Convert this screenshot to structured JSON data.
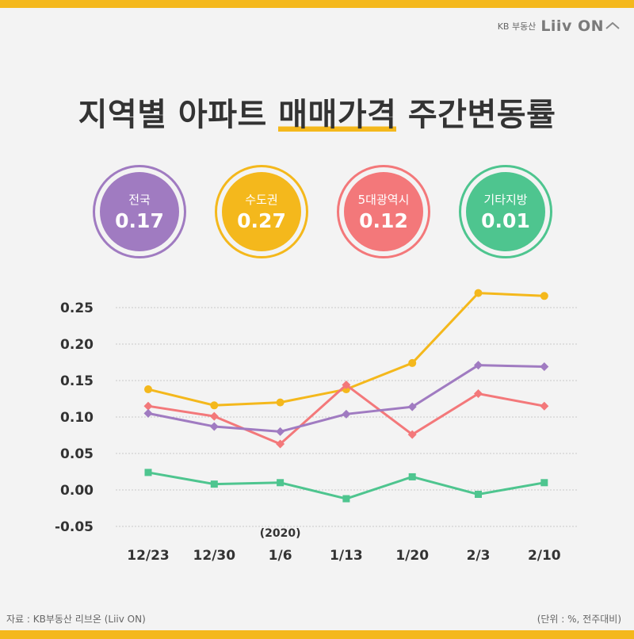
{
  "brand": {
    "text": "KB 부동산",
    "logo": "Liiv ON"
  },
  "title": {
    "part1": "지역별 아파트 ",
    "highlight": "매매가격",
    "part2": " 주간변동률"
  },
  "badges": [
    {
      "label": "전국",
      "value": "0.17",
      "color": "#a07bc1"
    },
    {
      "label": "수도권",
      "value": "0.27",
      "color": "#f4b81c"
    },
    {
      "label": "5대광역시",
      "value": "0.12",
      "color": "#f3787a"
    },
    {
      "label": "기타지방",
      "value": "0.01",
      "color": "#4ec58f"
    }
  ],
  "footer": {
    "source": "자료 : KB부동산 리브온 (Liiv ON)",
    "unit": "(단위 : %, 전주대비)"
  },
  "chart_data": {
    "type": "line",
    "year_label": "(2020)",
    "categories": [
      "12/23",
      "12/30",
      "1/6",
      "1/13",
      "1/20",
      "2/3",
      "2/10"
    ],
    "ylim": [
      -0.05,
      0.25
    ],
    "yticks": [
      "-0.05",
      "0.00",
      "0.05",
      "0.10",
      "0.15",
      "0.20",
      "0.25"
    ],
    "grid": true,
    "series": [
      {
        "name": "수도권",
        "color": "#f4b81c",
        "marker": "circle",
        "values": [
          0.138,
          0.116,
          0.12,
          0.138,
          0.174,
          0.27,
          0.266
        ]
      },
      {
        "name": "5대광역시",
        "color": "#f3787a",
        "marker": "diamond",
        "values": [
          0.115,
          0.101,
          0.063,
          0.144,
          0.076,
          0.132,
          0.115
        ]
      },
      {
        "name": "전국",
        "color": "#a07bc1",
        "marker": "diamond",
        "values": [
          0.105,
          0.087,
          0.08,
          0.104,
          0.114,
          0.171,
          0.169
        ]
      },
      {
        "name": "기타지방",
        "color": "#4ec58f",
        "marker": "square",
        "values": [
          0.024,
          0.008,
          0.01,
          -0.012,
          0.018,
          -0.006,
          0.01
        ]
      }
    ]
  }
}
